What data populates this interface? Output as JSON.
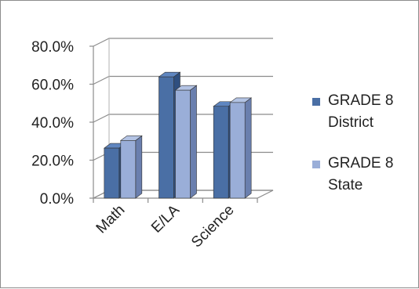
{
  "chart_data": {
    "type": "bar",
    "style": "3d-clustered-column",
    "categories": [
      "Math",
      "E/LA",
      "Science"
    ],
    "series": [
      {
        "name": "GRADE 8 District",
        "legend_lines": [
          "GRADE 8",
          "District"
        ],
        "values": [
          0.28,
          0.655,
          0.5
        ],
        "color": "#4a6fa5",
        "top_color": "#5f86c0",
        "side_color": "#2f4f7f"
      },
      {
        "name": "GRADE 8 State",
        "legend_lines": [
          "GRADE 8",
          "State"
        ],
        "values": [
          0.32,
          0.585,
          0.52
        ],
        "color": "#9aaed8",
        "top_color": "#b3c3e4",
        "side_color": "#6a7fae"
      }
    ],
    "ylim": [
      0,
      0.8
    ],
    "yticks": [
      "0.0%",
      "20.0%",
      "40.0%",
      "60.0%",
      "80.0%"
    ],
    "grid": true,
    "legend_position": "right",
    "title": "",
    "xlabel": "",
    "ylabel": ""
  }
}
